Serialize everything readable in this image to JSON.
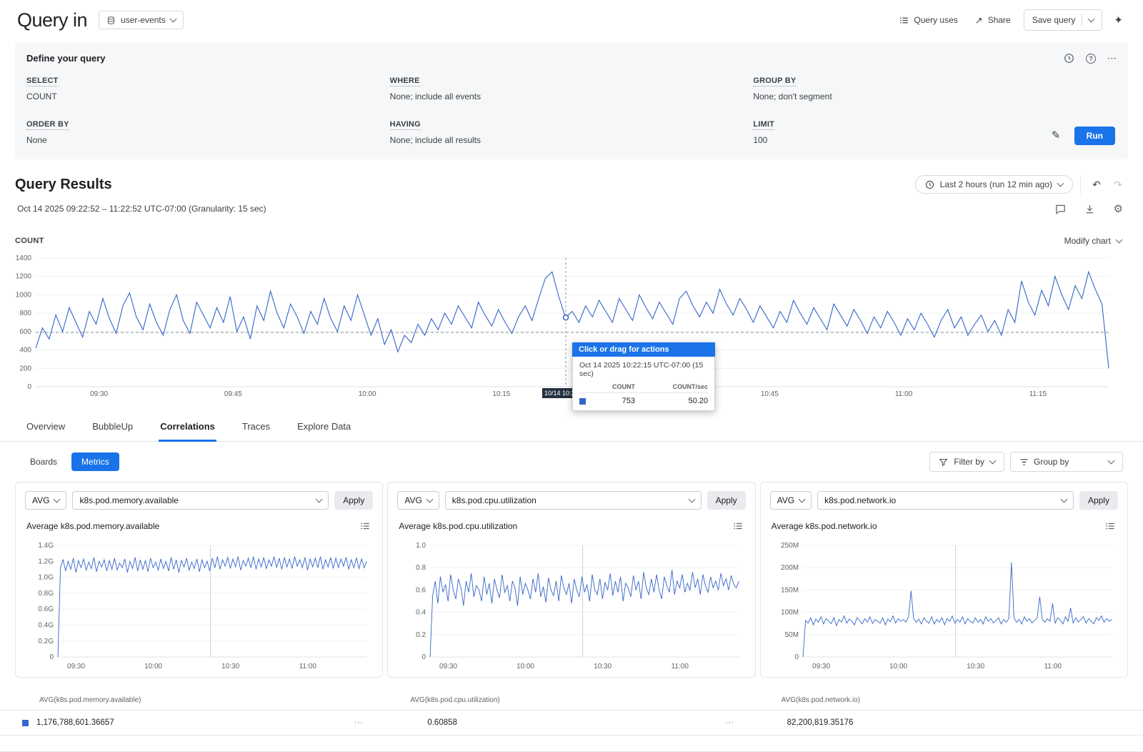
{
  "accent": "#1a73e8",
  "series_color": "#3565c9",
  "icons": {
    "share": "↗",
    "sparkle": "✦",
    "help": "?",
    "ellipsis": "⋯",
    "pencil": "✎",
    "gear": "⚙",
    "history_back": "↶",
    "history_forward": "↷",
    "more": "⋯"
  },
  "header": {
    "title": "Query in",
    "dataset": "user-events",
    "query_uses": "Query uses",
    "share": "Share",
    "save_query": "Save query"
  },
  "define": {
    "title": "Define your query",
    "fields": [
      {
        "label": "SELECT",
        "value": "COUNT"
      },
      {
        "label": "WHERE",
        "value": "None; include all events"
      },
      {
        "label": "GROUP BY",
        "value": "None; don't segment"
      },
      {
        "label": "ORDER BY",
        "value": "None"
      },
      {
        "label": "HAVING",
        "value": "None; include all results"
      },
      {
        "label": "LIMIT",
        "value": "100"
      }
    ],
    "run_label": "Run"
  },
  "results": {
    "title": "Query Results",
    "time_range": "Oct 14 2025 09:22:52 – 11:22:52 UTC-07:00 (Granularity: 15 sec)",
    "last_range": "Last 2 hours (run 12 min ago)",
    "count_label": "COUNT",
    "modify_chart": "Modify chart"
  },
  "tooltip": {
    "header": "Click or drag for actions",
    "timestamp": "Oct 14 2025 10:22:15 UTC-07:00 (15 sec)",
    "col_count": "COUNT",
    "col_count_sec": "COUNT/sec",
    "count": "753",
    "count_sec": "50.20",
    "axis_badge": "10/14 10:22:15"
  },
  "tabs": [
    {
      "label": "Overview"
    },
    {
      "label": "BubbleUp"
    },
    {
      "label": "Correlations"
    },
    {
      "label": "Traces"
    },
    {
      "label": "Explore Data"
    }
  ],
  "active_tab": "Correlations",
  "toolbar": {
    "boards": "Boards",
    "metrics": "Metrics",
    "filter_by": "Filter by",
    "group_by": "Group by"
  },
  "cards": [
    {
      "agg": "AVG",
      "metric": "k8s.pod.memory.available",
      "apply": "Apply",
      "title": "Average k8s.pod.memory.available"
    },
    {
      "agg": "AVG",
      "metric": "k8s.pod.cpu.utilization",
      "apply": "Apply",
      "title": "Average k8s.pod.cpu.utilization"
    },
    {
      "agg": "AVG",
      "metric": "k8s.pod.network.io",
      "apply": "Apply",
      "title": "Average k8s.pod.network.io"
    }
  ],
  "summary": [
    {
      "label": "AVG(k8s.pod.memory.available)",
      "value": "1,176,788,601.36657"
    },
    {
      "label": "AVG(k8s.pod.cpu.utilization)",
      "value": "0.60858"
    },
    {
      "label": "AVG(k8s.pod.network.io)",
      "value": "82,200,819.35176"
    }
  ],
  "chart_data": [
    {
      "type": "line",
      "title": "COUNT",
      "ylabel": "COUNT",
      "ylim": [
        0,
        1400
      ],
      "y_ticks": [
        0,
        200,
        400,
        600,
        800,
        1000,
        1200,
        1400
      ],
      "y_tick_labels": [
        "0",
        "200",
        "400",
        "600",
        "800",
        "1000",
        "1200",
        "1400"
      ],
      "x_ticks": [
        {
          "f": 0.059,
          "label": "09:30"
        },
        {
          "f": 0.184,
          "label": "09:45"
        },
        {
          "f": 0.309,
          "label": "10:00"
        },
        {
          "f": 0.434,
          "label": "10:15"
        },
        {
          "f": 0.559,
          "label": "10:30"
        },
        {
          "f": 0.684,
          "label": "10:45"
        },
        {
          "f": 0.809,
          "label": "11:00"
        },
        {
          "f": 0.934,
          "label": "11:15"
        }
      ],
      "avg_line": 590,
      "vline": {
        "f": 0.494,
        "dashed": true,
        "color": "#8f959b"
      },
      "marker": {
        "f": 0.494,
        "v": 753
      },
      "badge": {
        "f": 0.494,
        "label": "10/14 10:22:15"
      },
      "values": [
        420,
        640,
        520,
        780,
        600,
        860,
        700,
        540,
        820,
        680,
        960,
        740,
        580,
        880,
        1020,
        760,
        620,
        900,
        700,
        560,
        840,
        1000,
        720,
        580,
        920,
        780,
        640,
        860,
        700,
        980,
        600,
        760,
        520,
        880,
        720,
        1040,
        800,
        640,
        900,
        760,
        580,
        820,
        680,
        960,
        740,
        600,
        880,
        720,
        1000,
        780,
        560,
        740,
        460,
        620,
        380,
        560,
        480,
        680,
        560,
        740,
        620,
        800,
        680,
        880,
        760,
        640,
        920,
        780,
        660,
        840,
        700,
        580,
        760,
        880,
        720,
        960,
        1180,
        1250,
        980,
        753,
        820,
        700,
        880,
        760,
        940,
        820,
        700,
        960,
        840,
        720,
        1000,
        860,
        740,
        920,
        800,
        680,
        960,
        1040,
        880,
        760,
        920,
        800,
        1060,
        900,
        780,
        960,
        840,
        700,
        880,
        760,
        640,
        820,
        700,
        940,
        800,
        680,
        860,
        740,
        620,
        900,
        780,
        660,
        840,
        720,
        580,
        760,
        640,
        820,
        700,
        560,
        740,
        620,
        800,
        680,
        540,
        720,
        840,
        640,
        760,
        560,
        680,
        780,
        600,
        720,
        560,
        840,
        700,
        1150,
        920,
        780,
        1050,
        880,
        1200,
        1000,
        840,
        1100,
        960,
        1250,
        1060,
        900,
        200
      ]
    },
    {
      "type": "line",
      "title": "Average k8s.pod.memory.available",
      "unit": "G",
      "ylim": [
        0,
        1.4
      ],
      "y_ticks": [
        0,
        0.2,
        0.4,
        0.6,
        0.8,
        1.0,
        1.2,
        1.4
      ],
      "y_tick_labels": [
        "0",
        "0.2G",
        "0.4G",
        "0.6G",
        "0.8G",
        "1.0G",
        "1.2G",
        "1.4G"
      ],
      "x_ticks": [
        {
          "f": 0.059,
          "label": "09:30"
        },
        {
          "f": 0.309,
          "label": "10:00"
        },
        {
          "f": 0.559,
          "label": "10:30"
        },
        {
          "f": 0.809,
          "label": "11:00"
        }
      ],
      "vline": {
        "f": 0.494,
        "dashed": false,
        "color": "#cdd2d8"
      },
      "values": [
        0,
        1.12,
        1.22,
        1.08,
        1.2,
        1.1,
        1.24,
        1.06,
        1.21,
        1.12,
        1.23,
        1.09,
        1.19,
        1.11,
        1.25,
        1.07,
        1.2,
        1.13,
        1.22,
        1.08,
        1.21,
        1.1,
        1.24,
        1.09,
        1.18,
        1.12,
        1.23,
        1.06,
        1.2,
        1.11,
        1.25,
        1.08,
        1.22,
        1.1,
        1.21,
        1.07,
        1.24,
        1.12,
        1.19,
        1.09,
        1.23,
        1.11,
        1.2,
        1.08,
        1.25,
        1.1,
        1.22,
        1.06,
        1.21,
        1.13,
        1.24,
        1.09,
        1.19,
        1.11,
        1.23,
        1.07,
        1.22,
        1.12,
        1.2,
        1.08,
        1.24,
        1.12,
        1.26,
        1.1,
        1.22,
        1.14,
        1.25,
        1.11,
        1.23,
        1.13,
        1.26,
        1.09,
        1.21,
        1.14,
        1.24,
        1.12,
        1.26,
        1.1,
        1.23,
        1.13,
        1.25,
        1.11,
        1.22,
        1.14,
        1.26,
        1.12,
        1.24,
        1.1,
        1.25,
        1.13,
        1.23,
        1.11,
        1.26,
        1.14,
        1.22,
        1.12,
        1.25,
        1.09,
        1.23,
        1.13,
        1.24,
        1.12,
        1.26,
        1.1,
        1.22,
        1.13,
        1.25,
        1.11,
        1.24,
        1.12,
        1.23,
        1.14,
        1.25,
        1.1,
        1.22,
        1.12,
        1.24,
        1.11,
        1.23,
        1.12,
        1.2
      ]
    },
    {
      "type": "line",
      "title": "Average k8s.pod.cpu.utilization",
      "ylim": [
        0,
        1.0
      ],
      "y_ticks": [
        0,
        0.2,
        0.4,
        0.6,
        0.8,
        1.0
      ],
      "y_tick_labels": [
        "0",
        "0.2",
        "0.4",
        "0.6",
        "0.8",
        "1.0"
      ],
      "x_ticks": [
        {
          "f": 0.059,
          "label": "09:30"
        },
        {
          "f": 0.309,
          "label": "10:00"
        },
        {
          "f": 0.559,
          "label": "10:30"
        },
        {
          "f": 0.809,
          "label": "11:00"
        }
      ],
      "vline": {
        "f": 0.494,
        "dashed": false,
        "color": "#cdd2d8"
      },
      "values": [
        0,
        0.55,
        0.68,
        0.48,
        0.72,
        0.58,
        0.65,
        0.5,
        0.74,
        0.6,
        0.52,
        0.7,
        0.62,
        0.46,
        0.68,
        0.58,
        0.75,
        0.54,
        0.64,
        0.6,
        0.5,
        0.72,
        0.56,
        0.66,
        0.48,
        0.7,
        0.6,
        0.53,
        0.74,
        0.58,
        0.64,
        0.5,
        0.68,
        0.62,
        0.46,
        0.72,
        0.56,
        0.66,
        0.6,
        0.52,
        0.7,
        0.58,
        0.75,
        0.54,
        0.63,
        0.49,
        0.71,
        0.6,
        0.55,
        0.68,
        0.5,
        0.73,
        0.62,
        0.56,
        0.66,
        0.48,
        0.7,
        0.6,
        0.54,
        0.72,
        0.58,
        0.65,
        0.5,
        0.74,
        0.6,
        0.56,
        0.7,
        0.52,
        0.67,
        0.6,
        0.75,
        0.55,
        0.68,
        0.58,
        0.72,
        0.5,
        0.66,
        0.62,
        0.54,
        0.73,
        0.6,
        0.68,
        0.52,
        0.76,
        0.62,
        0.56,
        0.7,
        0.58,
        0.74,
        0.6,
        0.52,
        0.72,
        0.64,
        0.58,
        0.78,
        0.56,
        0.68,
        0.62,
        0.74,
        0.58,
        0.66,
        0.6,
        0.76,
        0.62,
        0.7,
        0.56,
        0.74,
        0.64,
        0.58,
        0.72,
        0.62,
        0.68,
        0.6,
        0.75,
        0.64,
        0.7,
        0.6,
        0.73,
        0.65,
        0.62,
        0.68
      ]
    },
    {
      "type": "line",
      "title": "Average k8s.pod.network.io",
      "unit": "M",
      "ylim": [
        0,
        250
      ],
      "y_ticks": [
        0,
        50,
        100,
        150,
        200,
        250
      ],
      "y_tick_labels": [
        "0",
        "50M",
        "100M",
        "150M",
        "200M",
        "250M"
      ],
      "x_ticks": [
        {
          "f": 0.059,
          "label": "09:30"
        },
        {
          "f": 0.309,
          "label": "10:00"
        },
        {
          "f": 0.559,
          "label": "10:30"
        },
        {
          "f": 0.809,
          "label": "11:00"
        }
      ],
      "vline": {
        "f": 0.494,
        "dashed": false,
        "color": "#cdd2d8"
      },
      "values": [
        0,
        82,
        76,
        88,
        72,
        85,
        78,
        90,
        74,
        86,
        80,
        75,
        88,
        70,
        84,
        78,
        92,
        76,
        85,
        80,
        72,
        88,
        82,
        74,
        86,
        78,
        90,
        75,
        84,
        80,
        76,
        88,
        72,
        85,
        79,
        92,
        76,
        86,
        80,
        84,
        78,
        90,
        148,
        86,
        78,
        85,
        74,
        88,
        80,
        76,
        90,
        74,
        84,
        78,
        88,
        72,
        86,
        80,
        92,
        76,
        84,
        78,
        90,
        74,
        86,
        80,
        76,
        88,
        78,
        84,
        74,
        90,
        80,
        86,
        76,
        82,
        88,
        74,
        84,
        78,
        86,
        212,
        88,
        78,
        84,
        74,
        90,
        80,
        86,
        76,
        82,
        88,
        135,
        84,
        78,
        86,
        80,
        120,
        76,
        88,
        82,
        74,
        90,
        80,
        110,
        76,
        88,
        78,
        84,
        90,
        76,
        86,
        80,
        74,
        88,
        82,
        92,
        78,
        86,
        80,
        84
      ]
    }
  ]
}
